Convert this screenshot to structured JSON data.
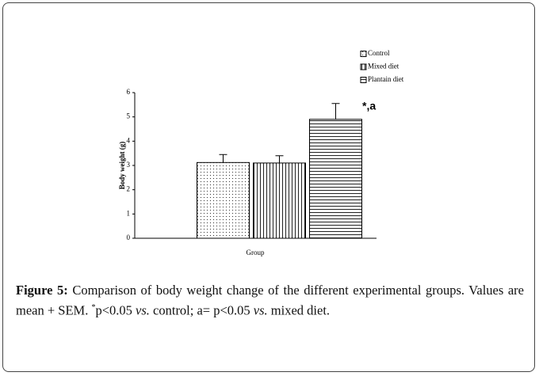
{
  "chart_data": {
    "type": "bar",
    "ylabel": "Body weight (g)",
    "xlabel": "Group",
    "categories": [
      "Group"
    ],
    "series": [
      {
        "name": "Control",
        "color": "#000000",
        "pattern": "dots",
        "values": [
          3.12
        ],
        "errors": [
          0.33
        ]
      },
      {
        "name": "Mixed diet",
        "color": "#000000",
        "pattern": "vertical",
        "values": [
          3.1
        ],
        "errors": [
          0.3
        ]
      },
      {
        "name": "Plantain diet",
        "color": "#000000",
        "pattern": "horizontal",
        "values": [
          4.9
        ],
        "errors": [
          0.65
        ]
      }
    ],
    "annotation": "*,a",
    "ylim": [
      0,
      6
    ],
    "yticks": [
      0,
      1,
      2,
      3,
      4,
      5,
      6
    ],
    "grid": false,
    "legend": "upper right"
  },
  "caption": [
    "Figure 5:",
    " Comparison of body weight change of the different experimental groups. Values are mean + SEM. ",
    "*",
    "p<0.05 ",
    "vs.",
    " control; a= p<0.05 ",
    "vs.",
    " mixed diet."
  ]
}
